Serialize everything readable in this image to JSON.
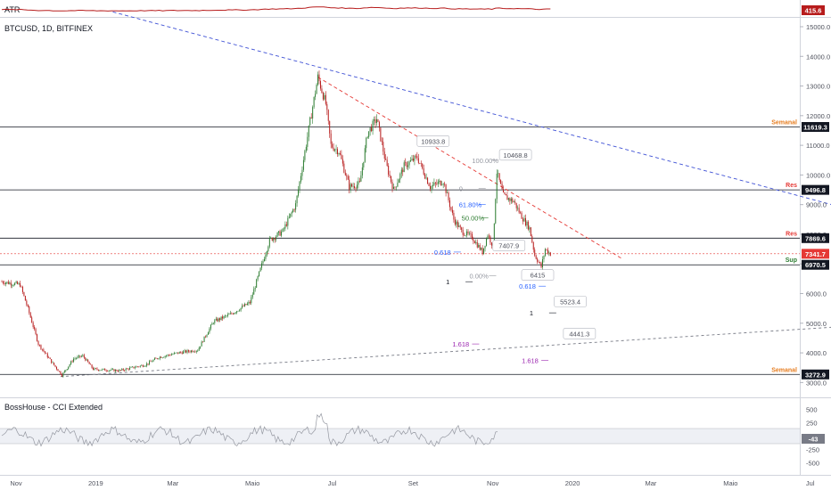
{
  "atr": {
    "title": "ATR",
    "last_value": "415.6",
    "line_color": "#b71c1c"
  },
  "chart_data": {
    "type": "candlestick",
    "title": "BTCUSD, 1D, BITFINEX",
    "price_axis": {
      "min": 2500,
      "max": 15300,
      "ticks": [
        3000,
        4000,
        5000,
        6000,
        7000,
        8000,
        9000,
        10000,
        11000,
        12000,
        13000,
        14000,
        15000
      ],
      "tick_labels": [
        "3000.0",
        "4000.0",
        "5000.0",
        "6000.0",
        "7000.0",
        "8000.0",
        "9000.0",
        "10000.0",
        "11000.0",
        "12000.0",
        "13000.0",
        "14000.0",
        "15000.0"
      ]
    },
    "time_axis": {
      "labels": [
        "Nov",
        "2019",
        "Mar",
        "Maio",
        "Jul",
        "Set",
        "Nov",
        "2020",
        "Mar",
        "Maio",
        "Jul"
      ],
      "label_day_index": [
        0,
        61,
        120,
        181,
        242,
        304,
        365,
        426,
        486,
        547,
        608
      ]
    },
    "levels": [
      {
        "price": 11619.3,
        "label": "11619.3",
        "zone": "Semanal",
        "zone_color": "#e67e22",
        "tag_color": "#131722"
      },
      {
        "price": 9496.8,
        "label": "9496.8",
        "zone": "Res",
        "zone_color": "#e53935",
        "tag_color": "#131722"
      },
      {
        "price": 7869.6,
        "label": "7869.6",
        "zone": "Res",
        "zone_color": "#e53935",
        "tag_color": "#131722"
      },
      {
        "price": 6970.5,
        "label": "6970.5",
        "zone": "Sup",
        "zone_color": "#2e7d32",
        "tag_color": "#131722"
      },
      {
        "price": 3272.9,
        "label": "3272.9",
        "zone": "Semanal",
        "zone_color": "#e67e22",
        "tag_color": "#131722"
      }
    ],
    "last_price": {
      "price": 7341.7,
      "label": "7341.7",
      "color": "#e53935"
    },
    "annotations": [
      {
        "text": "10933.8",
        "day": 320,
        "price": 10933.8
      },
      {
        "text": "10468.8",
        "day": 383,
        "price": 10468.8
      },
      {
        "text": "7407.9",
        "day": 378,
        "price": 7407.9
      },
      {
        "text": "6415",
        "day": 400,
        "price": 6415
      },
      {
        "text": "5523.4",
        "day": 425,
        "price": 5523.4
      },
      {
        "text": "4441.3",
        "day": 432,
        "price": 4441.3
      }
    ],
    "fib_labels": [
      {
        "text": "100.00%",
        "day": 360,
        "price": 10500,
        "color": "#9598a1"
      },
      {
        "text": "0",
        "day": 350,
        "price": 9550,
        "color": "#9598a1"
      },
      {
        "text": "61.80%",
        "day": 350,
        "price": 9000,
        "color": "#2962ff"
      },
      {
        "text": "50.00%",
        "day": 352,
        "price": 8550,
        "color": "#2e7d32"
      },
      {
        "text": "0.618",
        "day": 331,
        "price": 7400,
        "color": "#2962ff"
      },
      {
        "text": "1",
        "day": 340,
        "price": 6400,
        "color": "#131722"
      },
      {
        "text": "0.00%",
        "day": 358,
        "price": 6600,
        "color": "#9598a1"
      },
      {
        "text": "0.618",
        "day": 396,
        "price": 6250,
        "color": "#2962ff"
      },
      {
        "text": "1",
        "day": 404,
        "price": 5350,
        "color": "#131722"
      },
      {
        "text": "1.618",
        "day": 345,
        "price": 4300,
        "color": "#9c27b0"
      },
      {
        "text": "1.618",
        "day": 398,
        "price": 3750,
        "color": "#9c27b0"
      }
    ],
    "trendlines": [
      {
        "from": {
          "day": 85,
          "price": 15500
        },
        "to": {
          "day": 648,
          "price": 8850
        },
        "color": "#3f51d5",
        "dash": "4,3"
      },
      {
        "from": {
          "day": 242,
          "price": 13300
        },
        "to": {
          "day": 474,
          "price": 7200
        },
        "color": "#e53935",
        "dash": "4,3"
      },
      {
        "from": {
          "day": 45,
          "price": 3200
        },
        "to": {
          "day": 648,
          "price": 4900
        },
        "color": "#787b86",
        "dash": "3,3"
      }
    ],
    "series": {
      "open": [],
      "close": []
    },
    "closes_monthly": [
      {
        "month": "Nov 2018",
        "close": 4000
      },
      {
        "month": "Dec 2018",
        "close": 3700
      },
      {
        "month": "Jan 2019",
        "close": 3450
      },
      {
        "month": "Feb 2019",
        "close": 3800
      },
      {
        "month": "Mar 2019",
        "close": 4100
      },
      {
        "month": "Apr 2019",
        "close": 5300
      },
      {
        "month": "May 2019",
        "close": 8600
      },
      {
        "month": "Jun 2019",
        "close": 10800
      },
      {
        "month": "Jul 2019",
        "close": 10100
      },
      {
        "month": "Aug 2019",
        "close": 9600
      },
      {
        "month": "Sep 2019",
        "close": 8300
      },
      {
        "month": "Oct 2019",
        "close": 9200
      },
      {
        "month": "Nov 2019",
        "close": 7340
      }
    ]
  },
  "cci": {
    "title": "BossHouse - CCI Extended",
    "ticks": [
      "500",
      "250",
      "-250",
      "-500"
    ],
    "last_value": "-43",
    "colors": {
      "pos": "#2e7d32",
      "neg": "#e53935",
      "mid": "#9598a1"
    }
  },
  "colors": {
    "up": "#2e7d32",
    "down": "#b71c1c",
    "grid_border": "#131722"
  }
}
